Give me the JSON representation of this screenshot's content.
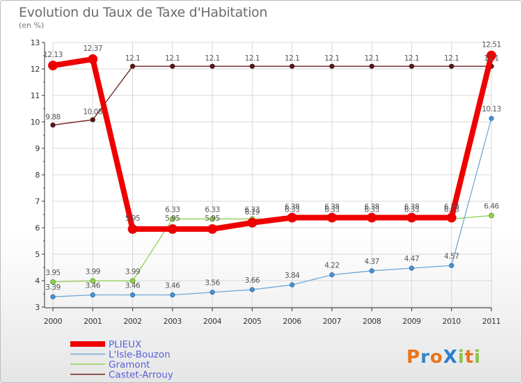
{
  "title": "Evolution du Taux de Taxe d'Habitation",
  "subtitle": "(en %)",
  "logo_text": "ProXiti",
  "chart_data": {
    "type": "line",
    "title": "Evolution du Taux de Taxe d'Habitation",
    "ylabel": "(en %)",
    "xlabel": "",
    "ylim": [
      3,
      13
    ],
    "yticks": [
      3,
      4,
      5,
      6,
      7,
      8,
      9,
      10,
      11,
      12,
      13
    ],
    "x": [
      "2000",
      "2001",
      "2002",
      "2003",
      "2004",
      "2005",
      "2006",
      "2007",
      "2008",
      "2009",
      "2010",
      "2011"
    ],
    "grid": true,
    "legend_position": "bottom-left",
    "series": [
      {
        "name": "Castet-Arrouy",
        "color": "#6b1d1d",
        "values": [
          9.88,
          10.08,
          12.1,
          12.1,
          12.1,
          12.1,
          12.1,
          12.1,
          12.1,
          12.1,
          12.1,
          12.1
        ],
        "labels": [
          "9.88",
          "10.08",
          "12.1",
          "12.1",
          "12.1",
          "12.1",
          "12.1",
          "12.1",
          "12.1",
          "12.1",
          "12.1",
          "12.1"
        ]
      },
      {
        "name": "Gramont",
        "color": "#92d050",
        "values": [
          3.95,
          3.99,
          3.99,
          6.33,
          6.33,
          6.33,
          6.33,
          6.33,
          6.33,
          6.33,
          6.33,
          6.46
        ],
        "labels": [
          "3.95",
          "3.99",
          "3.99",
          "6.33",
          "6.33",
          "6.33",
          "6.33",
          "6.33",
          "6.33",
          "6.33",
          "6.33",
          "6.46"
        ]
      },
      {
        "name": "L'Isle-Bouzon",
        "color": "#6fa8d8",
        "values": [
          3.39,
          3.46,
          3.46,
          3.46,
          3.56,
          3.66,
          3.84,
          4.22,
          4.37,
          4.47,
          4.57,
          10.13
        ],
        "labels": [
          "3.39",
          "3.46",
          "3.46",
          "3.46",
          "3.56",
          "3.66",
          "3.84",
          "4.22",
          "4.37",
          "4.47",
          "4.57",
          "10.13"
        ]
      },
      {
        "name": "PLIEUX",
        "color": "#ee0000",
        "values": [
          12.13,
          12.37,
          5.95,
          5.95,
          5.95,
          6.19,
          6.38,
          6.38,
          6.38,
          6.38,
          6.38,
          12.51
        ],
        "labels": [
          "12.13",
          "12.37",
          "5.95",
          "5.95",
          "5.95",
          "6.19",
          "6.38",
          "6.38",
          "6.38",
          "6.38",
          "6.38",
          "12.51"
        ]
      }
    ],
    "legend": [
      "PLIEUX",
      "L'Isle-Bouzon",
      "Gramont",
      "Castet-Arrouy"
    ]
  }
}
